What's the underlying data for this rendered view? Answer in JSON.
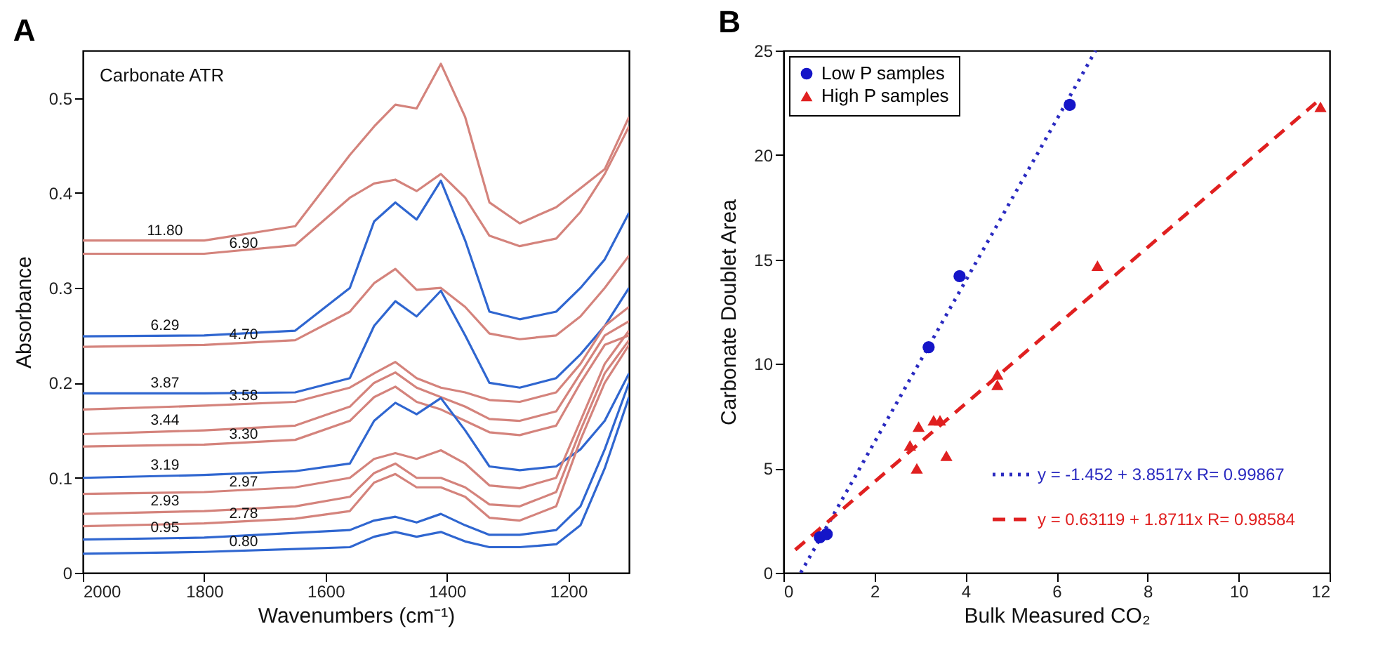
{
  "chart_data": [
    {
      "type": "line",
      "title": "A",
      "annotations": [
        "Carbonate ATR"
      ],
      "xlabel": "Wavenumbers (cm⁻¹)",
      "ylabel": "Absorbance",
      "xlim": [
        2000,
        1100
      ],
      "xticks": [
        2000,
        1800,
        1600,
        1400,
        1200
      ],
      "ylim": [
        0,
        0.55
      ],
      "yticks": [
        0,
        0.1,
        0.2,
        0.3,
        0.4,
        0.5
      ],
      "legend": false,
      "x": [
        2000,
        1800,
        1650,
        1560,
        1520,
        1485,
        1450,
        1410,
        1370,
        1330,
        1280,
        1220,
        1180,
        1140,
        1100
      ],
      "series": [
        {
          "name": "11.80",
          "color": "#d4837c",
          "values": [
            0.35,
            0.35,
            0.365,
            0.44,
            0.47,
            0.493,
            0.489,
            0.536,
            0.48,
            0.39,
            0.368,
            0.385,
            0.405,
            0.425,
            0.48
          ]
        },
        {
          "name": "6.90",
          "color": "#d4837c",
          "values": [
            0.336,
            0.336,
            0.345,
            0.395,
            0.41,
            0.414,
            0.402,
            0.42,
            0.395,
            0.355,
            0.344,
            0.352,
            0.38,
            0.42,
            0.47
          ]
        },
        {
          "name": "6.29",
          "color": "#2f66d0",
          "values": [
            0.249,
            0.25,
            0.255,
            0.3,
            0.37,
            0.39,
            0.372,
            0.413,
            0.35,
            0.275,
            0.267,
            0.275,
            0.3,
            0.33,
            0.379
          ]
        },
        {
          "name": "4.70",
          "color": "#d4837c",
          "values": [
            0.238,
            0.24,
            0.245,
            0.275,
            0.305,
            0.32,
            0.298,
            0.3,
            0.28,
            0.252,
            0.246,
            0.25,
            0.27,
            0.3,
            0.334
          ]
        },
        {
          "name": "3.87",
          "color": "#2f66d0",
          "values": [
            0.189,
            0.189,
            0.19,
            0.205,
            0.26,
            0.286,
            0.27,
            0.297,
            0.25,
            0.2,
            0.195,
            0.205,
            0.23,
            0.26,
            0.3
          ]
        },
        {
          "name": "3.58",
          "color": "#d4837c",
          "values": [
            0.172,
            0.176,
            0.18,
            0.195,
            0.21,
            0.222,
            0.205,
            0.195,
            0.19,
            0.182,
            0.18,
            0.19,
            0.22,
            0.26,
            0.28
          ]
        },
        {
          "name": "3.44",
          "color": "#d4837c",
          "values": [
            0.146,
            0.15,
            0.155,
            0.175,
            0.2,
            0.211,
            0.195,
            0.185,
            0.175,
            0.162,
            0.16,
            0.17,
            0.21,
            0.25,
            0.265
          ]
        },
        {
          "name": "3.30",
          "color": "#d4837c",
          "values": [
            0.133,
            0.135,
            0.14,
            0.16,
            0.185,
            0.196,
            0.18,
            0.172,
            0.16,
            0.148,
            0.145,
            0.155,
            0.2,
            0.24,
            0.25
          ]
        },
        {
          "name": "3.19",
          "color": "#2f66d0",
          "values": [
            0.1,
            0.103,
            0.107,
            0.115,
            0.16,
            0.179,
            0.167,
            0.184,
            0.15,
            0.112,
            0.108,
            0.112,
            0.13,
            0.16,
            0.21
          ]
        },
        {
          "name": "2.97",
          "color": "#d4837c",
          "values": [
            0.083,
            0.085,
            0.09,
            0.1,
            0.12,
            0.126,
            0.12,
            0.129,
            0.115,
            0.092,
            0.089,
            0.1,
            0.16,
            0.22,
            0.255
          ]
        },
        {
          "name": "2.93",
          "color": "#d4837c",
          "values": [
            0.062,
            0.065,
            0.07,
            0.08,
            0.105,
            0.115,
            0.1,
            0.1,
            0.09,
            0.072,
            0.07,
            0.085,
            0.15,
            0.21,
            0.245
          ]
        },
        {
          "name": "2.78",
          "color": "#d4837c",
          "values": [
            0.049,
            0.052,
            0.057,
            0.065,
            0.095,
            0.104,
            0.09,
            0.09,
            0.08,
            0.058,
            0.055,
            0.07,
            0.14,
            0.2,
            0.24
          ]
        },
        {
          "name": "0.95",
          "color": "#2f66d0",
          "values": [
            0.035,
            0.037,
            0.042,
            0.045,
            0.055,
            0.059,
            0.053,
            0.062,
            0.05,
            0.04,
            0.04,
            0.045,
            0.07,
            0.13,
            0.2
          ]
        },
        {
          "name": "0.80",
          "color": "#2f66d0",
          "values": [
            0.02,
            0.022,
            0.025,
            0.027,
            0.038,
            0.043,
            0.038,
            0.043,
            0.033,
            0.027,
            0.027,
            0.03,
            0.05,
            0.11,
            0.185
          ]
        }
      ]
    },
    {
      "type": "scatter",
      "title": "B",
      "xlabel": "Bulk Measured CO₂",
      "ylabel": "Carbonate Doublet Area",
      "xlim": [
        0,
        12
      ],
      "xticks": [
        0,
        2,
        4,
        6,
        8,
        10,
        12
      ],
      "ylim": [
        0,
        25
      ],
      "yticks": [
        0,
        5,
        10,
        15,
        20,
        25
      ],
      "legend": "top left",
      "series": [
        {
          "name": "Low P samples",
          "type": "scatter",
          "marker": "circle",
          "color": "#1515c8",
          "x": [
            0.8,
            0.95,
            3.19,
            3.87,
            6.29
          ],
          "values": [
            1.7,
            1.85,
            10.8,
            14.2,
            22.4
          ]
        },
        {
          "name": "High P samples",
          "type": "scatter",
          "marker": "triangle",
          "color": "#e02020",
          "x": [
            2.78,
            2.93,
            2.97,
            3.3,
            3.44,
            3.58,
            4.7,
            4.7,
            6.9,
            11.8
          ],
          "values": [
            6.1,
            5.0,
            7.0,
            7.3,
            7.3,
            5.6,
            9.5,
            9.0,
            14.7,
            22.3
          ]
        },
        {
          "name": "y = -1.452 + 3.8517x R= 0.99867",
          "type": "line",
          "line_style": "dotted",
          "color": "#2a2ac0",
          "x": [
            0.38,
            6.86
          ],
          "values": [
            0,
            25
          ]
        },
        {
          "name": "y = 0.63119 + 1.8711x R= 0.98584",
          "type": "line",
          "line_style": "dashed",
          "color": "#e02020",
          "x": [
            0.26,
            11.7
          ],
          "values": [
            1.1,
            22.5
          ]
        }
      ]
    }
  ]
}
